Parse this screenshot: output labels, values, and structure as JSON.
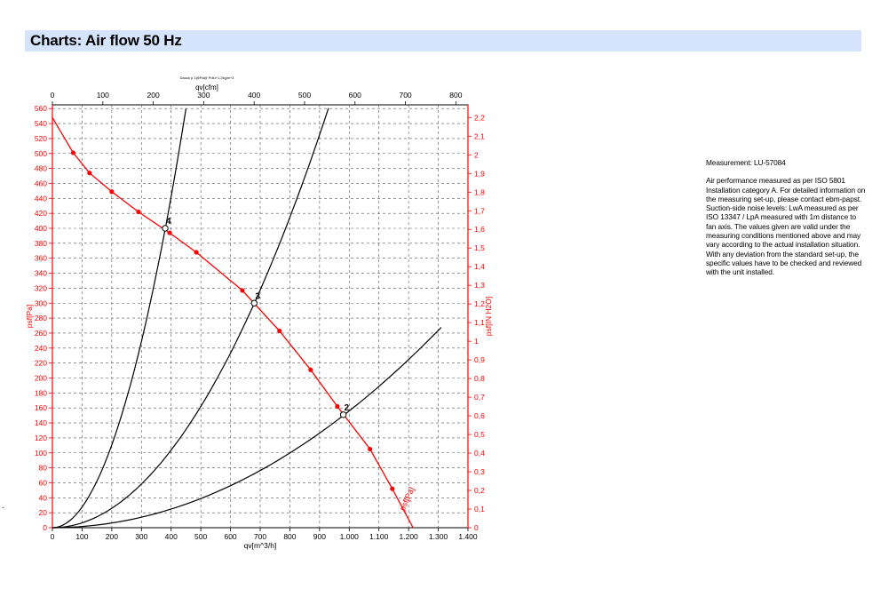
{
  "header": {
    "title": "Charts: Air flow 50 Hz"
  },
  "notes": {
    "measurement": "Measurement: LU-57084",
    "description": "Air performance measured as per ISO 5801 Installation category A. For detailed information on the measuring set-up, please contact ebm-papst. Suction-side noise levels: LwA measured as per ISO 13347 / LpA measured with 1m distance to fan axis. The values given are valid under the measuring conditions mentioned above and may vary according to the actual installation situation. With any deviation from the standard set-up, the specific values have to be checked and reviewed with the unit installed."
  },
  "stray_mark": "-",
  "chart_data": {
    "type": "line",
    "title": "Dauck p 1@Pa@ Pdlu+1,2kg/m^3",
    "xlabel_bottom": "qv[m^3/h]",
    "xlabel_top": "qv[cfm]",
    "ylabel_left": "psf[Pa]",
    "ylabel_right": "psf[IN H2O]",
    "curve_label": "psf[Pa]",
    "x_bottom_ticks": [
      "0",
      "100",
      "200",
      "300",
      "400",
      "500",
      "600",
      "700",
      "800",
      "900",
      "1.000",
      "1.100",
      "1.200",
      "1.300",
      "1.400"
    ],
    "x_top_ticks": [
      "0",
      "100",
      "200",
      "300",
      "400",
      "500",
      "600",
      "700",
      "800"
    ],
    "y_left_ticks": [
      "0",
      "20",
      "40",
      "60",
      "80",
      "100",
      "120",
      "140",
      "160",
      "180",
      "200",
      "220",
      "240",
      "260",
      "280",
      "300",
      "320",
      "340",
      "360",
      "380",
      "400",
      "420",
      "440",
      "460",
      "480",
      "500",
      "520",
      "540",
      "560"
    ],
    "y_right_ticks": [
      "0",
      "0,1",
      "0,2",
      "0,3",
      "0,4",
      "0,5",
      "0,6",
      "0,7",
      "0,8",
      "0,9",
      "1",
      "1,1",
      "1,2",
      "1,3",
      "1,4",
      "1,5",
      "1,6",
      "1,7",
      "1,8",
      "1,9",
      "2",
      "2,1",
      "2,2"
    ],
    "x_range_m3h": [
      0,
      1400
    ],
    "y_range_pa": [
      0,
      565
    ],
    "grid": true,
    "colors": {
      "fan_curve": "#ff0000",
      "system_curves": "#000000",
      "grid": "#555555"
    },
    "series": [
      {
        "name": "psf[Pa]",
        "role": "fan_curve",
        "x": [
          0,
          70,
          125,
          200,
          290,
          395,
          485,
          640,
          765,
          870,
          960,
          1070,
          1145,
          1215
        ],
        "y": [
          548,
          501,
          474,
          449,
          422,
          394,
          368,
          317,
          263,
          211,
          162,
          105,
          52,
          0
        ]
      },
      {
        "role": "system_curve",
        "x": [
          0,
          450
        ],
        "y": [
          0,
          560
        ],
        "k": 0.002765
      },
      {
        "role": "system_curve",
        "x": [
          0,
          930
        ],
        "y": [
          0,
          560
        ],
        "k": 0.000648
      },
      {
        "role": "system_curve",
        "x": [
          0,
          1310
        ],
        "y": [
          0,
          268
        ],
        "k": 0.000156
      }
    ],
    "operating_points": [
      {
        "label": "2",
        "x": 980,
        "y": 151
      },
      {
        "label": "3",
        "x": 680,
        "y": 300
      },
      {
        "label": "4",
        "x": 380,
        "y": 400
      }
    ]
  }
}
